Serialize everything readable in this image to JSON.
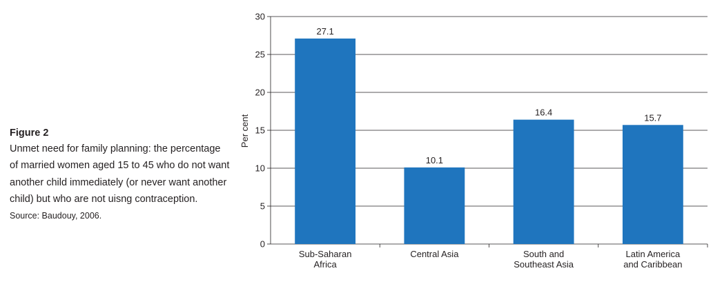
{
  "caption": {
    "label": "Figure 2",
    "body": "Unmet need for family planning: the percentage of married women aged 15 to 45 who do not want another child immediately (or never want another child) but who are not uisng contraception.",
    "source": "Source: Baudouy, 2006."
  },
  "chart_data": {
    "type": "bar",
    "categories": [
      [
        "Sub-Saharan",
        "Africa"
      ],
      [
        "Central Asia"
      ],
      [
        "South and",
        "Southeast Asia"
      ],
      [
        "Latin America",
        "and Caribbean"
      ]
    ],
    "values": [
      27.1,
      10.1,
      16.4,
      15.7
    ],
    "data_labels": [
      "27.1",
      "10.1",
      "16.4",
      "15.7"
    ],
    "ylabel": "Per cent",
    "ylim": [
      0,
      30
    ],
    "yticks": [
      0,
      5,
      10,
      15,
      20,
      25,
      30
    ],
    "grid": true,
    "bar_color": "#1f75be"
  }
}
